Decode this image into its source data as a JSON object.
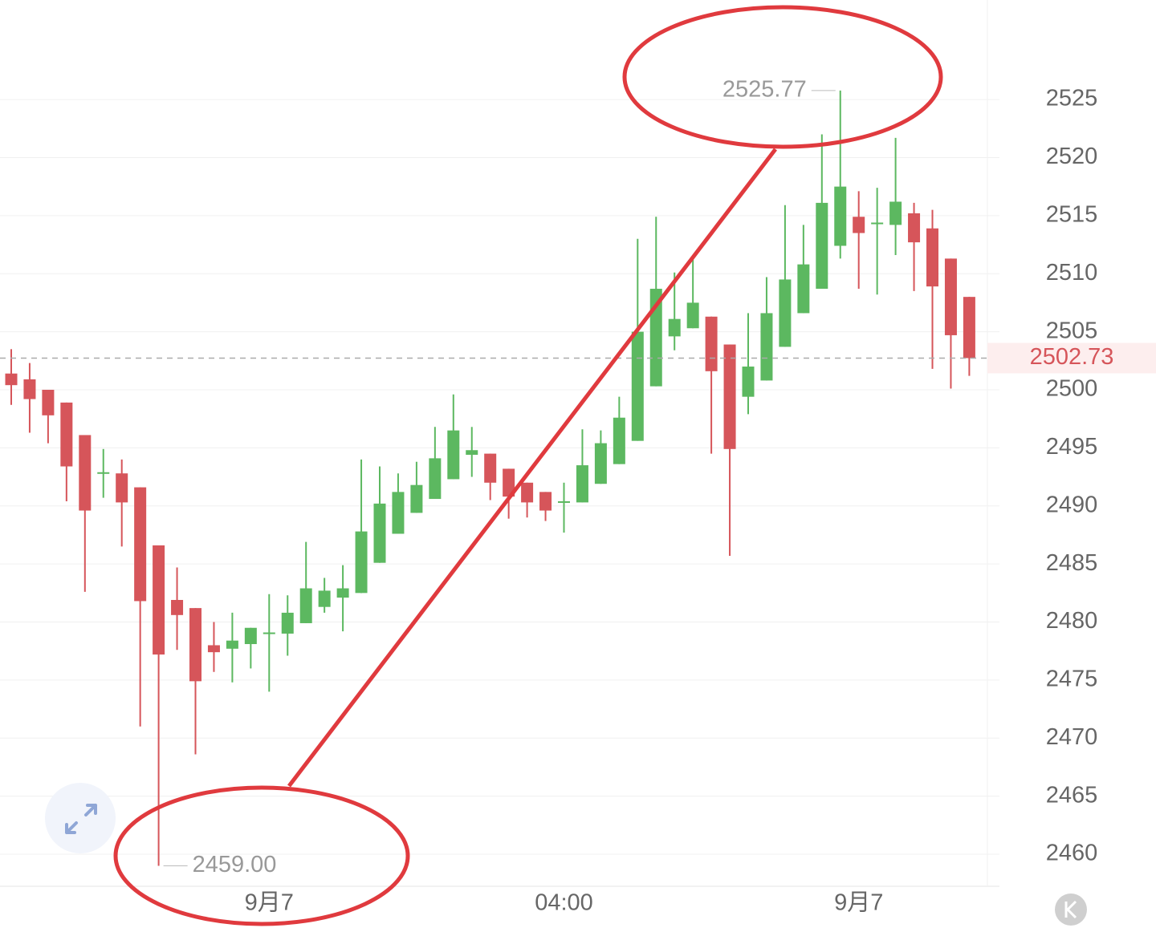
{
  "chart_data": {
    "type": "candlestick",
    "categories": [
      null,
      null,
      null,
      null,
      null,
      null,
      null,
      null,
      null,
      null,
      null,
      null,
      null,
      null,
      "9月7",
      null,
      null,
      null,
      null,
      null,
      null,
      null,
      null,
      null,
      null,
      null,
      null,
      null,
      null,
      null,
      "04:00",
      null,
      null,
      null,
      null,
      null,
      null,
      null,
      null,
      null,
      null,
      null,
      null,
      null,
      null,
      null,
      "9月7",
      null,
      null,
      null,
      null,
      null,
      null
    ],
    "open": [
      2501.4,
      2500.9,
      2500.0,
      2498.9,
      2496.1,
      2492.8,
      2492.8,
      2491.6,
      2486.6,
      2481.9,
      2481.2,
      2478.0,
      2477.7,
      2478.1,
      2479.0,
      2479.0,
      2479.9,
      2481.3,
      2482.1,
      2482.5,
      2485.1,
      2487.6,
      2489.4,
      2490.6,
      2492.3,
      2494.4,
      2494.5,
      2493.2,
      2492.0,
      2491.2,
      2490.3,
      2490.3,
      2491.9,
      2493.6,
      2495.6,
      2500.3,
      2504.6,
      2505.3,
      2506.3,
      2503.9,
      2499.4,
      2500.8,
      2503.7,
      2506.6,
      2508.7,
      2512.4,
      2514.9,
      2514.3,
      2514.2,
      2515.2,
      2513.9,
      2511.3,
      2508.0
    ],
    "high": [
      2503.5,
      2502.3,
      2500.0,
      2498.9,
      2496.1,
      2494.9,
      2494.0,
      2491.6,
      2486.6,
      2484.7,
      2481.2,
      2480.0,
      2480.8,
      2479.5,
      2482.4,
      2482.3,
      2486.9,
      2483.8,
      2484.9,
      2494.0,
      2493.4,
      2492.8,
      2493.8,
      2496.8,
      2499.6,
      2496.8,
      2494.5,
      2493.2,
      2492.0,
      2491.2,
      2492.0,
      2496.6,
      2496.5,
      2499.4,
      2513.0,
      2514.9,
      2510.1,
      2511.2,
      2506.3,
      2503.9,
      2506.6,
      2509.7,
      2515.9,
      2514.2,
      2522.0,
      2525.77,
      2517.1,
      2517.4,
      2521.7,
      2516.1,
      2515.5,
      2511.3,
      2508.0
    ],
    "low": [
      2498.7,
      2496.3,
      2495.4,
      2490.4,
      2482.6,
      2490.7,
      2486.5,
      2471.0,
      2459.0,
      2477.6,
      2468.6,
      2475.7,
      2474.8,
      2476.0,
      2474.0,
      2477.1,
      2479.9,
      2480.8,
      2479.2,
      2482.5,
      2485.1,
      2487.6,
      2489.4,
      2490.6,
      2492.3,
      2492.5,
      2490.5,
      2488.9,
      2489.0,
      2488.7,
      2487.7,
      2490.3,
      2491.9,
      2493.6,
      2495.6,
      2500.3,
      2503.4,
      2505.3,
      2494.5,
      2485.7,
      2497.9,
      2500.8,
      2503.7,
      2506.6,
      2508.7,
      2511.3,
      2508.7,
      2508.2,
      2511.6,
      2508.5,
      2501.8,
      2500.1,
      2501.2
    ],
    "close": [
      2500.4,
      2499.2,
      2497.8,
      2493.4,
      2489.6,
      2492.9,
      2490.3,
      2481.8,
      2477.2,
      2480.6,
      2474.9,
      2477.4,
      2478.4,
      2479.5,
      2479.1,
      2480.8,
      2482.9,
      2482.7,
      2482.9,
      2487.8,
      2490.2,
      2491.2,
      2491.8,
      2494.1,
      2496.5,
      2494.8,
      2492.0,
      2490.8,
      2490.3,
      2489.6,
      2490.4,
      2493.5,
      2495.4,
      2497.6,
      2505.0,
      2508.7,
      2506.1,
      2507.5,
      2501.6,
      2494.9,
      2502.0,
      2506.6,
      2509.5,
      2510.8,
      2516.1,
      2517.5,
      2513.5,
      2514.4,
      2516.2,
      2512.7,
      2508.9,
      2504.7,
      2502.73
    ],
    "up_color": "#5cb860",
    "down_color": "#d6555a",
    "ylim": [
      2457.24,
      2533.57
    ],
    "yticks": [
      2460,
      2465,
      2470,
      2475,
      2480,
      2485,
      2490,
      2495,
      2500,
      2505,
      2510,
      2515,
      2520,
      2525
    ],
    "grid": true,
    "last_price": 2502.73,
    "max_label": "2525.77",
    "min_label": "2459.00"
  }
}
